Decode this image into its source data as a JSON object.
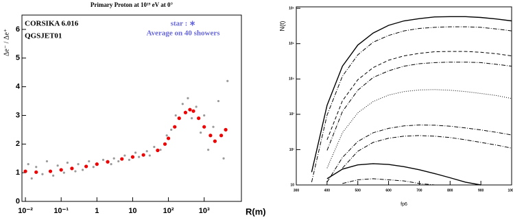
{
  "chart_data": [
    {
      "type": "scatter",
      "title": "Primary Proton at 10¹⁹ eV at 0°",
      "x_label": "R(m)",
      "y_label": "Δe⁻ / Δe⁺",
      "xlog": true,
      "xlim": [
        0.008,
        11000
      ],
      "ylim": [
        0,
        6.5
      ],
      "xticks": [
        {
          "value": 0.01,
          "label": "10⁻²"
        },
        {
          "value": 0.1,
          "label": "10⁻¹"
        },
        1,
        10,
        {
          "value": 100,
          "label": "10²"
        },
        {
          "value": 1000,
          "label": "10³"
        }
      ],
      "yticks": [
        0,
        1,
        2,
        3,
        4,
        5,
        6
      ],
      "annotations": [
        {
          "text": "CORSIKA 6.016",
          "color": "#000000"
        },
        {
          "text": "QGSJET01",
          "color": "#000000"
        },
        {
          "text": "star : ∗",
          "color": "#6666dd"
        },
        {
          "text": "Average on 40 showers",
          "color": "#6666dd"
        }
      ],
      "series": [
        {
          "color": "#9a9a9a",
          "size": 1.6,
          "x": [
            0.012,
            0.015,
            0.02,
            0.03,
            0.04,
            0.06,
            0.08,
            0.12,
            0.15,
            0.25,
            0.3,
            0.4,
            0.6,
            0.8,
            1.5,
            2.5,
            3,
            4,
            6,
            8,
            12,
            15,
            25,
            30,
            40,
            60,
            90,
            120,
            160,
            250,
            350,
            450,
            600,
            800,
            1000,
            1300,
            1800,
            2500,
            3500,
            4500
          ],
          "values": [
            1.3,
            0.8,
            1.2,
            0.95,
            1.4,
            0.9,
            1.25,
            1.0,
            1.35,
            1.05,
            1.3,
            1.1,
            1.4,
            1.2,
            1.45,
            1.3,
            1.5,
            1.4,
            1.6,
            1.45,
            1.7,
            1.55,
            1.75,
            1.6,
            1.9,
            1.8,
            2.3,
            2.5,
            3.0,
            3.4,
            3.6,
            2.9,
            3.3,
            2.4,
            3.0,
            1.8,
            2.6,
            3.5,
            1.5,
            4.2
          ]
        },
        {
          "color": "#ee0000",
          "size": 2.6,
          "x": [
            0.01,
            0.02,
            0.05,
            0.1,
            0.2,
            0.5,
            1,
            2,
            5,
            10,
            20,
            50,
            80,
            100,
            150,
            200,
            300,
            400,
            500,
            700,
            1000,
            1500,
            2000,
            3000,
            4000
          ],
          "values": [
            1.05,
            1.02,
            1.05,
            1.1,
            1.15,
            1.22,
            1.3,
            1.38,
            1.48,
            1.55,
            1.62,
            1.78,
            2.0,
            2.2,
            2.6,
            2.9,
            3.1,
            3.2,
            3.15,
            2.9,
            2.6,
            2.3,
            2.1,
            2.3,
            2.5
          ]
        }
      ]
    },
    {
      "type": "line",
      "x_label": "fp6",
      "y_label": "N(t)",
      "ylog": true,
      "xlim": [
        300,
        1000
      ],
      "ylim": [
        10,
        1100000
      ],
      "xticks": [
        300,
        400,
        500,
        600,
        700,
        800,
        900,
        1000
      ],
      "yticks": [
        10,
        {
          "value": 100,
          "label": "10²"
        },
        {
          "value": 1000,
          "label": "10³"
        },
        {
          "value": 10000,
          "label": "10⁴"
        },
        {
          "value": 100000,
          "label": "10⁵"
        },
        {
          "value": 1000000,
          "label": "10⁶"
        }
      ],
      "x": [
        300,
        350,
        400,
        450,
        500,
        550,
        600,
        650,
        700,
        750,
        800,
        850,
        900,
        950,
        1000
      ],
      "series": [
        {
          "color": "#000000",
          "dash": "solid",
          "values": [
            null,
            23,
            1800,
            23000,
            91000,
            200000,
            330000,
            440000,
            510000,
            570000,
            580000,
            580000,
            550000,
            500000,
            440000
          ]
        },
        {
          "color": "#000000",
          "dash": "dashdot",
          "values": [
            null,
            12,
            950,
            12000,
            48000,
            110000,
            170000,
            230000,
            270000,
            290000,
            300000,
            300000,
            290000,
            260000,
            230000
          ]
        },
        {
          "color": "#000000",
          "dash": "dashed",
          "values": [
            null,
            null,
            190,
            2400,
            9500,
            21000,
            34000,
            45000,
            53000,
            59000,
            60000,
            60000,
            57000,
            52000,
            45000
          ]
        },
        {
          "color": "#000000",
          "dash": "dashdot",
          "values": [
            null,
            null,
            95,
            1200,
            4800,
            11000,
            17000,
            23000,
            27000,
            29000,
            30000,
            30000,
            29000,
            26000,
            23000
          ]
        },
        {
          "color": "#000000",
          "dash": "dotted",
          "values": [
            null,
            null,
            30,
            300,
            1100,
            2300,
            3500,
            4400,
            4900,
            5000,
            4800,
            4400,
            3900,
            3400,
            2800
          ]
        },
        {
          "color": "#000000",
          "dash": "dashdot",
          "values": [
            null,
            null,
            12,
            60,
            170,
            300,
            400,
            470,
            500,
            490,
            460,
            410,
            360,
            310,
            260
          ]
        },
        {
          "color": "#000000",
          "dash": "dashdot",
          "values": [
            null,
            null,
            null,
            30,
            90,
            160,
            210,
            240,
            250,
            240,
            220,
            190,
            160,
            135,
            110
          ]
        },
        {
          "color": "#000000",
          "dash": "solid",
          "values": [
            null,
            null,
            15,
            28,
            37,
            40,
            38,
            33,
            27,
            21,
            16,
            12,
            10,
            null,
            null
          ]
        },
        {
          "color": "#000000",
          "dash": "dashdot",
          "values": [
            null,
            null,
            null,
            11,
            14,
            15,
            14,
            13,
            11,
            10,
            null,
            null,
            null,
            null,
            null
          ]
        }
      ]
    }
  ]
}
